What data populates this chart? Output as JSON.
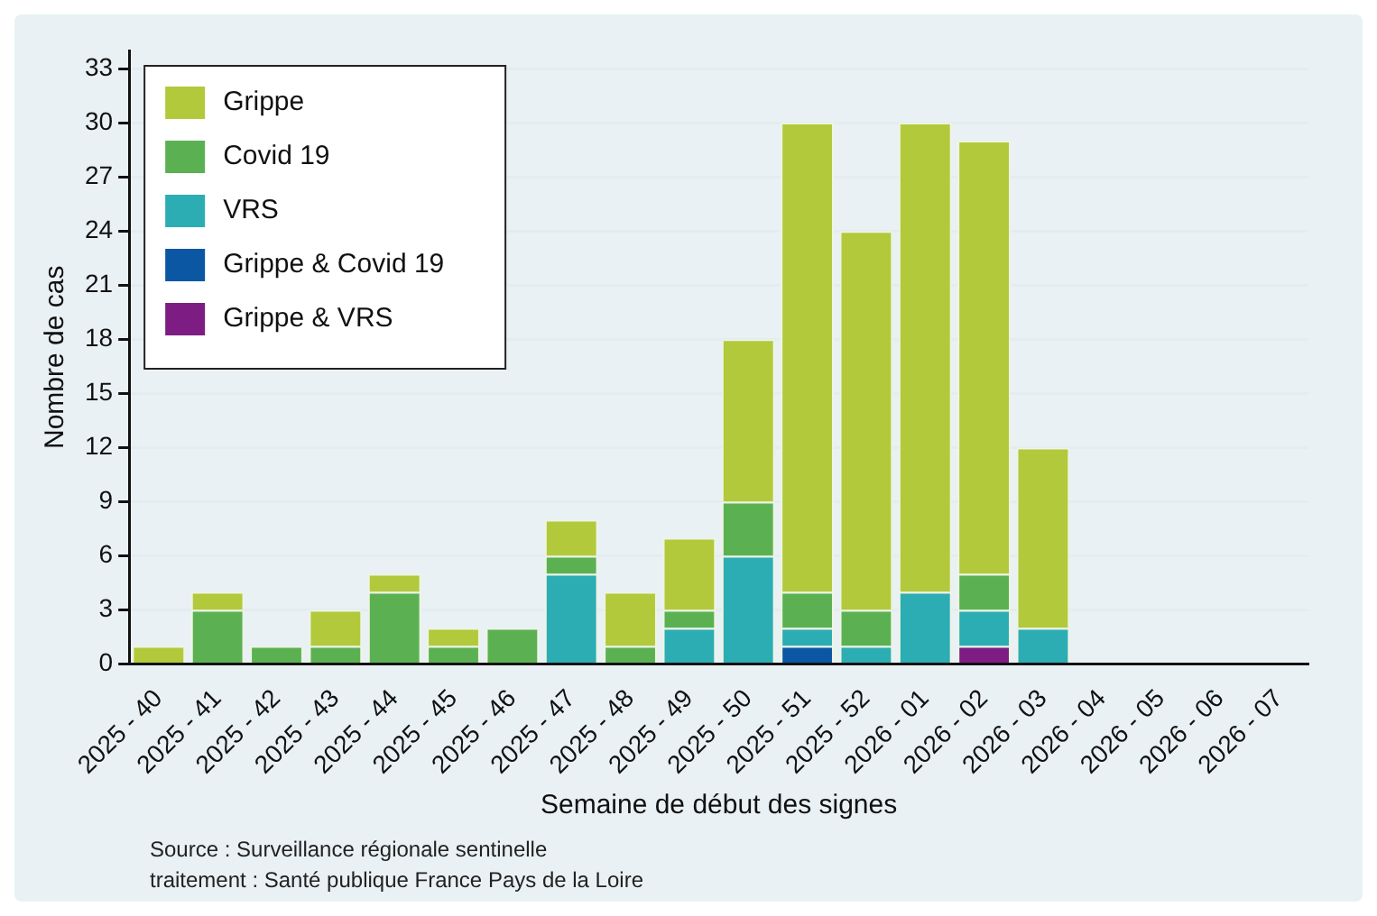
{
  "chart_data": {
    "type": "bar",
    "stacked": true,
    "xlabel": "Semaine de début des signes",
    "ylabel": "Nombre de cas",
    "categories": [
      "2025 - 40",
      "2025 - 41",
      "2025 - 42",
      "2025 - 43",
      "2025 - 44",
      "2025 - 45",
      "2025 - 46",
      "2025 - 47",
      "2025 - 48",
      "2025 - 49",
      "2025 - 50",
      "2025 - 51",
      "2025 - 52",
      "2026 - 01",
      "2026 - 02",
      "2026 - 03",
      "2026 - 04",
      "2026 - 05",
      "2026 - 06",
      "2026 - 07"
    ],
    "series": [
      {
        "name": "Grippe & VRS",
        "color": "#7d1d84",
        "values": [
          0,
          0,
          0,
          0,
          0,
          0,
          0,
          0,
          0,
          0,
          0,
          0,
          0,
          0,
          1,
          0,
          0,
          0,
          0,
          0
        ]
      },
      {
        "name": "Grippe & Covid 19",
        "color": "#0b57a4",
        "values": [
          0,
          0,
          0,
          0,
          0,
          0,
          0,
          0,
          0,
          0,
          0,
          1,
          0,
          0,
          0,
          0,
          0,
          0,
          0,
          0
        ]
      },
      {
        "name": "VRS",
        "color": "#2badb3",
        "values": [
          0,
          0,
          0,
          0,
          0,
          0,
          0,
          5,
          0,
          2,
          6,
          1,
          1,
          4,
          2,
          2,
          0,
          0,
          0,
          0
        ]
      },
      {
        "name": "Covid 19",
        "color": "#5bb152",
        "values": [
          0,
          3,
          1,
          1,
          4,
          1,
          2,
          1,
          1,
          1,
          3,
          2,
          2,
          0,
          2,
          0,
          0,
          0,
          0,
          0
        ]
      },
      {
        "name": "Grippe",
        "color": "#b2c93b",
        "values": [
          1,
          1,
          0,
          2,
          1,
          1,
          0,
          2,
          3,
          4,
          9,
          26,
          21,
          26,
          24,
          10,
          0,
          0,
          0,
          0
        ]
      }
    ],
    "ylim": [
      0,
      34
    ],
    "yticks": [
      0,
      3,
      6,
      9,
      12,
      15,
      18,
      21,
      24,
      27,
      30,
      33
    ],
    "grid": "y",
    "legend": "top left",
    "annotations": [
      "Source : Surveillance régionale sentinelle",
      "traitement : Santé publique France Pays de la Loire"
    ]
  }
}
